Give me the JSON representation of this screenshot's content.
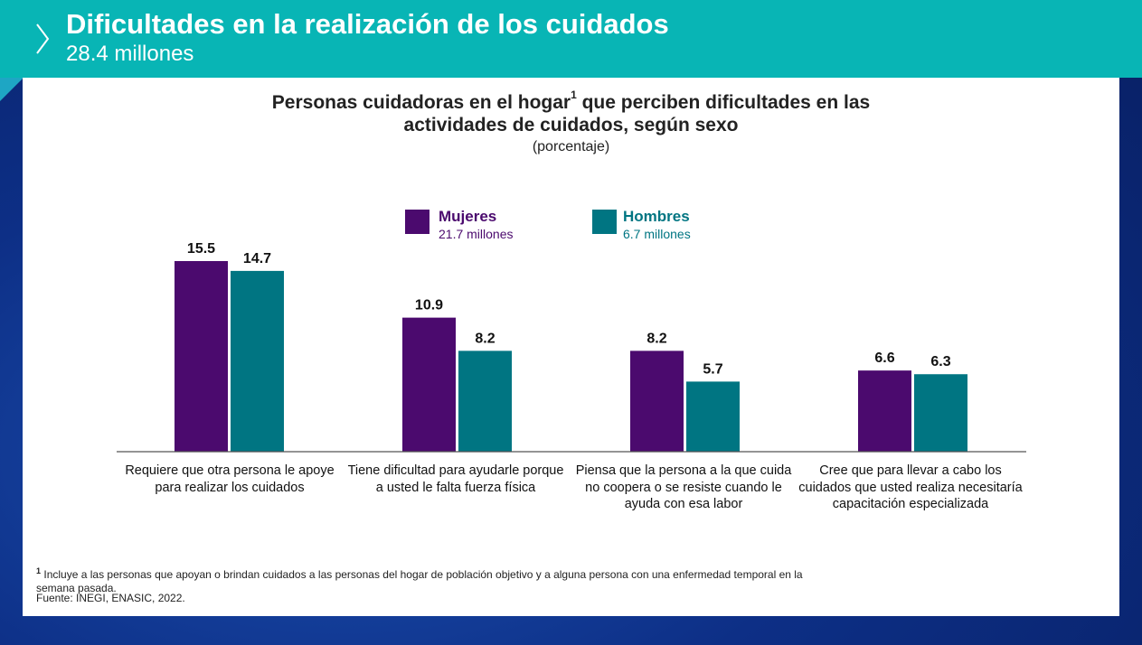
{
  "header": {
    "title": "Dificultades en la realización de los cuidados",
    "subtitle": "28.4 millones"
  },
  "legend": [
    {
      "name": "Mujeres",
      "sub": "21.7 millones"
    },
    {
      "name": "Hombres",
      "sub": "6.7 millones"
    }
  ],
  "colors": {
    "mujeres": "#4b0a6e",
    "hombres": "#007582",
    "header": "#08b5b5"
  },
  "footnote": {
    "marker": "1",
    "text": "Incluye a las personas que apoyan o brindan cuidados a las personas del hogar de población objetivo y a alguna persona con una enfermedad temporal en la semana pasada.",
    "source": "Fuente: INEGI, ENASIC, 2022."
  },
  "chart_data": {
    "type": "bar",
    "title_line1": "Personas cuidadoras en el hogar",
    "title_sup": "1",
    "title_line1_rest": "que perciben dificultades en las",
    "title_line2": "actividades de cuidados, según sexo",
    "unit": "(porcentaje)",
    "categories": [
      "Requiere que otra persona le apoye para realizar los cuidados",
      "Tiene dificultad para ayudarle porque a usted le falta fuerza física",
      "Piensa que la persona a la que cuida no coopera o se resiste cuando le ayuda con esa labor",
      "Cree que para llevar a cabo los cuidados que usted realiza necesitaría capacitación especializada"
    ],
    "series": [
      {
        "name": "Mujeres",
        "values": [
          15.5,
          10.9,
          8.2,
          6.6
        ]
      },
      {
        "name": "Hombres",
        "values": [
          14.7,
          8.2,
          5.7,
          6.3
        ]
      }
    ],
    "ylim": [
      0,
      15.5
    ]
  }
}
